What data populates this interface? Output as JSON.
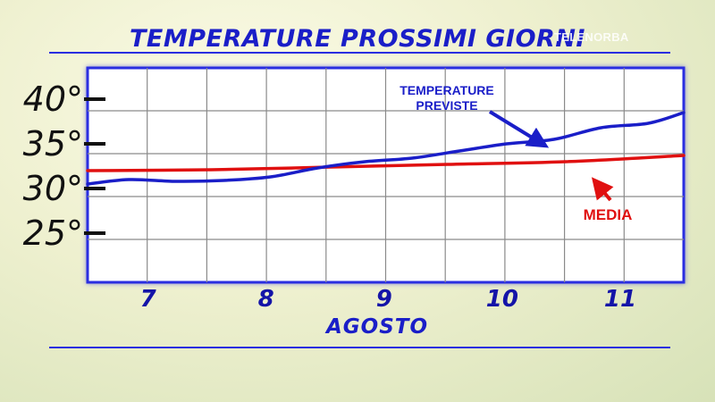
{
  "watermark": "TELENORBA",
  "chart_data": {
    "type": "line",
    "title": "TEMPERATURE PROSSIMI GIORNI",
    "xlabel": "AGOSTO",
    "ylabel": "",
    "x_ticks": [
      7,
      8,
      9,
      10,
      11
    ],
    "xlim": [
      6.45,
      11.5
    ],
    "y_ticks": [
      "25°",
      "30°",
      "35°",
      "40°"
    ],
    "y_tick_values": [
      25,
      30,
      35,
      40
    ],
    "ylim": [
      19.5,
      43.5
    ],
    "grid": true,
    "series": [
      {
        "name": "TEMPERATURE PREVISTE",
        "color": "#1a1ec8",
        "x": [
          6.45,
          6.8,
          7.2,
          7.6,
          8.0,
          8.4,
          8.8,
          9.2,
          9.6,
          10.0,
          10.4,
          10.8,
          11.2,
          11.5
        ],
        "y": [
          30.5,
          31.0,
          30.8,
          30.9,
          31.3,
          32.3,
          33.0,
          33.4,
          34.2,
          35.0,
          35.5,
          36.8,
          37.3,
          38.5
        ]
      },
      {
        "name": "MEDIA",
        "color": "#e01010",
        "x": [
          6.45,
          7.5,
          8.5,
          9.5,
          10.5,
          11.5
        ],
        "y": [
          32.0,
          32.1,
          32.4,
          32.7,
          33.0,
          33.7
        ]
      }
    ],
    "annotations": [
      {
        "lines": [
          "TEMPERATURE",
          "PREVISTE"
        ],
        "color": "#1a1ec8",
        "points_to": "TEMPERATURE PREVISTE"
      },
      {
        "text": "MEDIA",
        "color": "#e01010",
        "points_to": "MEDIA"
      }
    ]
  }
}
